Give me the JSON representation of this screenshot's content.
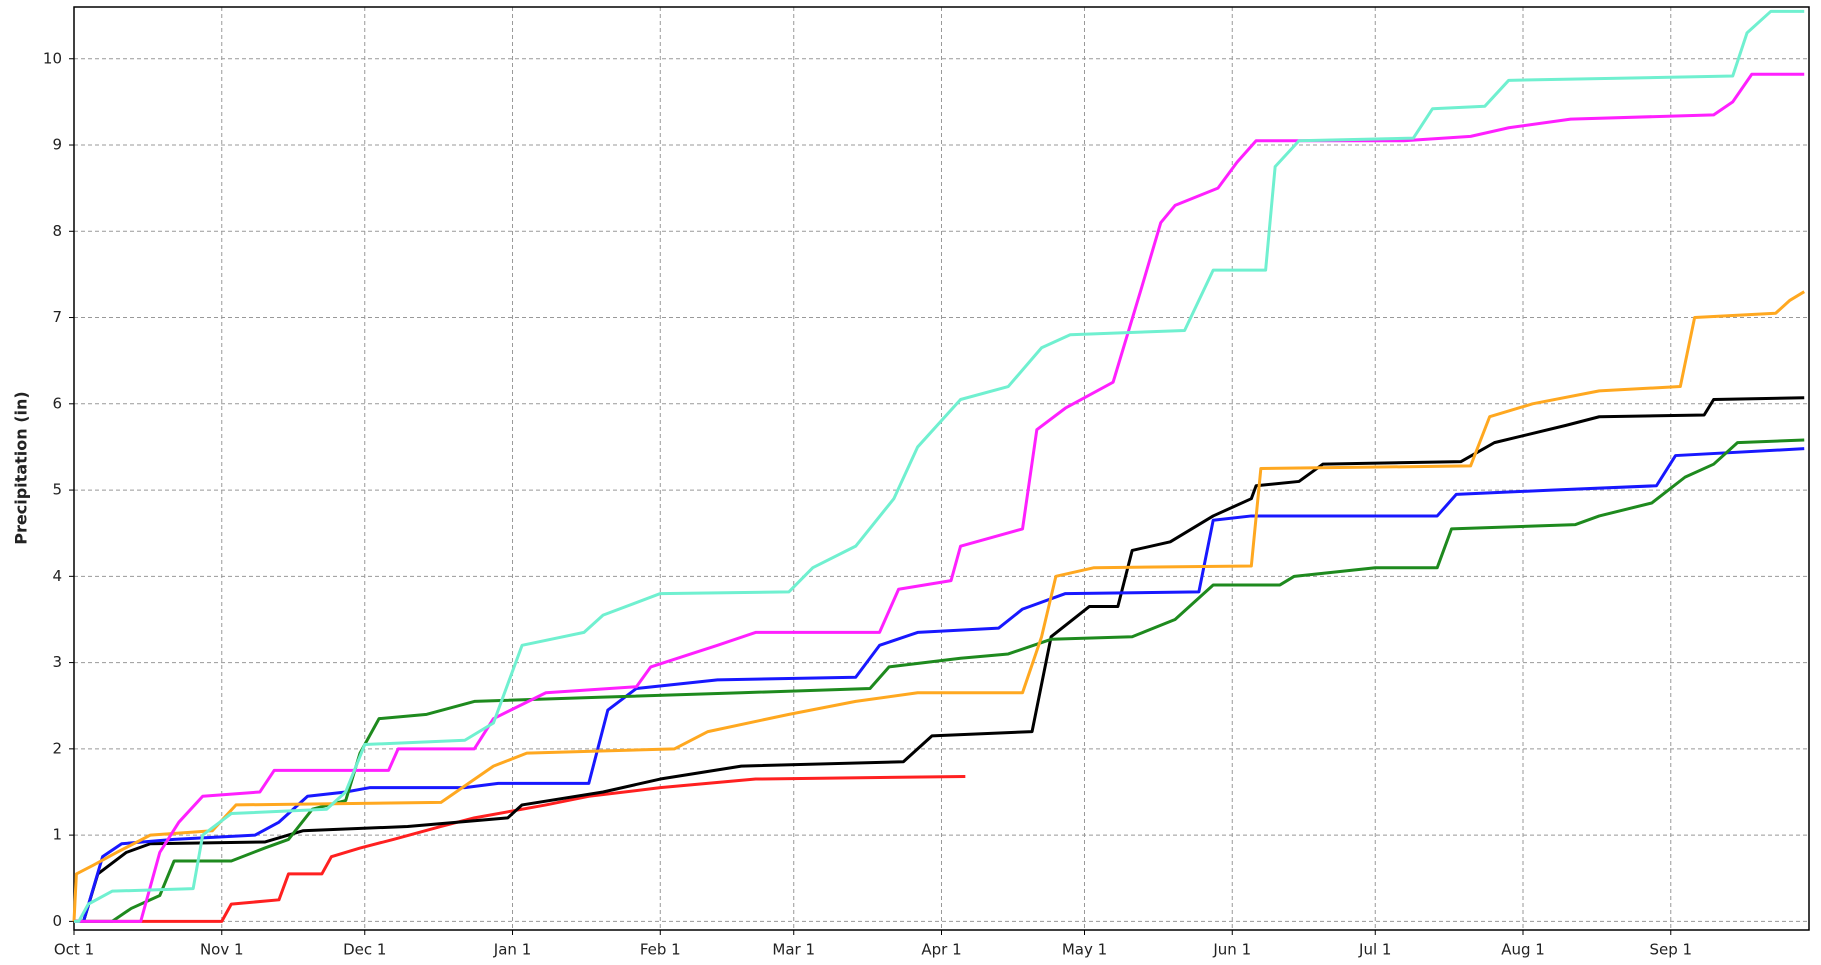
{
  "chart_data": {
    "type": "line",
    "y_label": "Precipitation (in)",
    "xlim": [
      0,
      364
    ],
    "ylim": [
      -0.1,
      10.6
    ],
    "xticks": [
      {
        "value": 0,
        "label": "Oct 1"
      },
      {
        "value": 31,
        "label": "Nov 1"
      },
      {
        "value": 61,
        "label": "Dec 1"
      },
      {
        "value": 92,
        "label": "Jan 1"
      },
      {
        "value": 123,
        "label": "Feb 1"
      },
      {
        "value": 151,
        "label": "Mar 1"
      },
      {
        "value": 182,
        "label": "Apr 1"
      },
      {
        "value": 212,
        "label": "May 1"
      },
      {
        "value": 243,
        "label": "Jun 1"
      },
      {
        "value": 273,
        "label": "Jul 1"
      },
      {
        "value": 304,
        "label": "Aug 1"
      },
      {
        "value": 335,
        "label": "Sep 1"
      }
    ],
    "yticks": [
      0,
      1,
      2,
      3,
      4,
      5,
      6,
      7,
      8,
      9,
      10
    ],
    "grid": true,
    "series": [
      {
        "color": "#ff2020",
        "x": [
          0,
          31,
          33,
          43,
          45,
          52,
          54,
          60,
          67,
          77,
          84,
          99,
          108,
          123,
          143,
          187
        ],
        "values": [
          0,
          0,
          0.2,
          0.25,
          0.55,
          0.55,
          0.75,
          0.85,
          0.95,
          1.1,
          1.2,
          1.35,
          1.45,
          1.55,
          1.65,
          1.68
        ]
      },
      {
        "color": "#000000",
        "x": [
          0,
          2,
          5,
          11,
          16,
          40,
          48,
          70,
          91,
          94,
          111,
          123,
          140,
          174,
          180,
          201,
          205,
          213,
          219,
          222,
          230,
          239,
          247,
          248,
          257,
          262,
          291,
          298,
          313,
          320,
          342,
          344,
          363
        ],
        "values": [
          0,
          0,
          0.55,
          0.8,
          0.9,
          0.92,
          1.05,
          1.1,
          1.2,
          1.35,
          1.5,
          1.65,
          1.8,
          1.85,
          2.15,
          2.2,
          3.3,
          3.65,
          3.65,
          4.3,
          4.4,
          4.7,
          4.9,
          5.05,
          5.1,
          5.3,
          5.33,
          5.55,
          5.75,
          5.85,
          5.87,
          6.05,
          6.07
        ]
      },
      {
        "color": "#1818ff",
        "x": [
          0,
          2,
          6,
          10,
          21,
          38,
          43,
          49,
          57,
          62,
          82,
          89,
          108,
          112,
          118,
          135,
          164,
          169,
          177,
          194,
          199,
          208,
          236,
          239,
          247,
          286,
          290,
          310,
          332,
          336,
          363
        ],
        "values": [
          0,
          0,
          0.75,
          0.9,
          0.95,
          1.0,
          1.15,
          1.45,
          1.5,
          1.55,
          1.55,
          1.6,
          1.6,
          2.45,
          2.7,
          2.8,
          2.83,
          3.2,
          3.35,
          3.4,
          3.62,
          3.8,
          3.82,
          4.65,
          4.7,
          4.7,
          4.95,
          5.0,
          5.05,
          5.4,
          5.48
        ]
      },
      {
        "color": "#1e8a1e",
        "x": [
          0,
          8,
          12,
          18,
          21,
          33,
          40,
          45,
          50,
          57,
          60,
          64,
          74,
          84,
          111,
          140,
          167,
          171,
          186,
          196,
          205,
          222,
          231,
          239,
          253,
          256,
          273,
          286,
          289,
          315,
          320,
          331,
          338,
          344,
          349,
          363
        ],
        "values": [
          0,
          0,
          0.15,
          0.3,
          0.7,
          0.7,
          0.85,
          0.95,
          1.3,
          1.4,
          1.95,
          2.35,
          2.4,
          2.55,
          2.6,
          2.65,
          2.7,
          2.95,
          3.05,
          3.1,
          3.27,
          3.3,
          3.5,
          3.9,
          3.9,
          4.0,
          4.1,
          4.1,
          4.55,
          4.6,
          4.7,
          4.85,
          5.15,
          5.3,
          5.55,
          5.58
        ]
      },
      {
        "color": "#ffa820",
        "x": [
          0,
          0.5,
          4,
          9,
          16,
          29,
          34,
          77,
          88,
          95,
          126,
          133,
          150,
          164,
          177,
          199,
          203,
          206,
          214,
          247,
          249,
          293,
          297,
          306,
          320,
          337,
          340,
          357,
          360,
          363
        ],
        "values": [
          0,
          0.55,
          0.65,
          0.8,
          1.0,
          1.05,
          1.35,
          1.38,
          1.8,
          1.95,
          2.0,
          2.2,
          2.4,
          2.55,
          2.65,
          2.65,
          3.3,
          4.0,
          4.1,
          4.12,
          5.25,
          5.28,
          5.85,
          6.0,
          6.15,
          6.2,
          7.0,
          7.05,
          7.2,
          7.3
        ]
      },
      {
        "color": "#ff20ff",
        "x": [
          0,
          14,
          18,
          22,
          27,
          39,
          42,
          66,
          68,
          84,
          88,
          99,
          118,
          121,
          135,
          143,
          169,
          173,
          184,
          186,
          199,
          202,
          208,
          218,
          224,
          228,
          231,
          240,
          244,
          248,
          279,
          293,
          301,
          314,
          344,
          348,
          352,
          363
        ],
        "values": [
          0,
          0,
          0.8,
          1.15,
          1.45,
          1.5,
          1.75,
          1.75,
          2.0,
          2.0,
          2.35,
          2.65,
          2.72,
          2.95,
          3.2,
          3.35,
          3.35,
          3.85,
          3.95,
          4.35,
          4.55,
          5.7,
          5.95,
          6.25,
          7.35,
          8.1,
          8.3,
          8.5,
          8.8,
          9.05,
          9.05,
          9.1,
          9.2,
          9.3,
          9.35,
          9.5,
          9.82,
          9.82
        ]
      },
      {
        "color": "#70f0d0",
        "x": [
          0,
          1,
          3,
          8,
          25,
          27,
          33,
          53,
          57,
          61,
          82,
          88,
          94,
          107,
          111,
          123,
          150,
          155,
          164,
          172,
          177,
          186,
          196,
          203,
          209,
          233,
          239,
          250,
          252,
          257,
          281,
          285,
          296,
          301,
          348,
          351,
          356,
          363
        ],
        "values": [
          0,
          0,
          0.2,
          0.35,
          0.38,
          1.0,
          1.25,
          1.3,
          1.5,
          2.05,
          2.1,
          2.3,
          3.2,
          3.35,
          3.55,
          3.8,
          3.82,
          4.1,
          4.35,
          4.9,
          5.5,
          6.05,
          6.2,
          6.65,
          6.8,
          6.85,
          7.55,
          7.55,
          8.75,
          9.05,
          9.08,
          9.42,
          9.45,
          9.75,
          9.8,
          10.3,
          10.55,
          10.55
        ]
      }
    ]
  }
}
